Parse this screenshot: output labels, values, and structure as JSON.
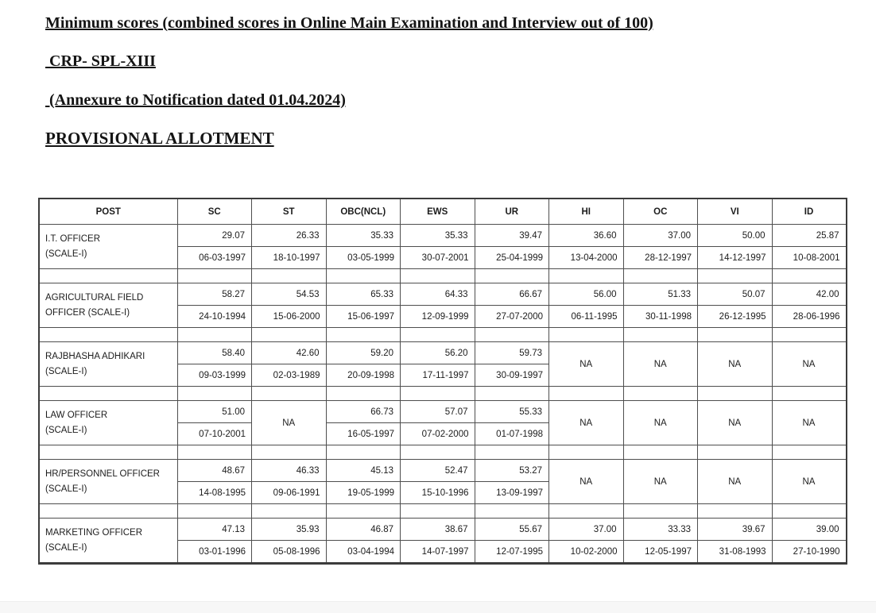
{
  "document": {
    "title": "Minimum scores (combined scores in Online Main Examination and Interview out of 100)",
    "subtitle_crp": " CRP- SPL-XIII",
    "subtitle_annexure": " (Annexure to Notification dated 01.04.2024)",
    "subtitle_provisional": "PROVISIONAL ALLOTMENT"
  },
  "colors": {
    "text": "#1c1c1c",
    "table_border": "#4e4e4e",
    "bottom_bar": "#f7f7f7"
  },
  "table": {
    "columns": [
      "POST",
      "SC",
      "ST",
      "OBC(NCL)",
      "EWS",
      "UR",
      "HI",
      "OC",
      "VI",
      "ID"
    ],
    "na_label": "NA",
    "rows": [
      {
        "post_lines": [
          "I.T. OFFICER",
          "(SCALE-I)"
        ],
        "cells": [
          {
            "score": "29.07",
            "date": "06-03-1997"
          },
          {
            "score": "26.33",
            "date": "18-10-1997"
          },
          {
            "score": "35.33",
            "date": "03-05-1999"
          },
          {
            "score": "35.33",
            "date": "30-07-2001"
          },
          {
            "score": "39.47",
            "date": "25-04-1999"
          },
          {
            "score": "36.60",
            "date": "13-04-2000"
          },
          {
            "score": "37.00",
            "date": "28-12-1997"
          },
          {
            "score": "50.00",
            "date": "14-12-1997"
          },
          {
            "score": "25.87",
            "date": "10-08-2001"
          }
        ]
      },
      {
        "post_lines": [
          "AGRICULTURAL FIELD",
          "OFFICER (SCALE-I)"
        ],
        "cells": [
          {
            "score": "58.27",
            "date": "24-10-1994"
          },
          {
            "score": "54.53",
            "date": "15-06-2000"
          },
          {
            "score": "65.33",
            "date": "15-06-1997"
          },
          {
            "score": "64.33",
            "date": "12-09-1999"
          },
          {
            "score": "66.67",
            "date": "27-07-2000"
          },
          {
            "score": "56.00",
            "date": "06-11-1995"
          },
          {
            "score": "51.33",
            "date": "30-11-1998"
          },
          {
            "score": "50.07",
            "date": "26-12-1995"
          },
          {
            "score": "42.00",
            "date": "28-06-1996"
          }
        ]
      },
      {
        "post_lines": [
          "RAJBHASHA ADHIKARI",
          "(SCALE-I)"
        ],
        "cells": [
          {
            "score": "58.40",
            "date": "09-03-1999"
          },
          {
            "score": "42.60",
            "date": "02-03-1989"
          },
          {
            "score": "59.20",
            "date": "20-09-1998"
          },
          {
            "score": "56.20",
            "date": "17-11-1997"
          },
          {
            "score": "59.73",
            "date": "30-09-1997"
          },
          {
            "na": true
          },
          {
            "na": true
          },
          {
            "na": true
          },
          {
            "na": true
          }
        ]
      },
      {
        "post_lines": [
          "LAW OFFICER",
          "(SCALE-I)"
        ],
        "cells": [
          {
            "score": "51.00",
            "date": "07-10-2001"
          },
          {
            "na": true
          },
          {
            "score": "66.73",
            "date": "16-05-1997"
          },
          {
            "score": "57.07",
            "date": "07-02-2000"
          },
          {
            "score": "55.33",
            "date": "01-07-1998"
          },
          {
            "na": true
          },
          {
            "na": true
          },
          {
            "na": true
          },
          {
            "na": true
          }
        ]
      },
      {
        "post_lines": [
          "HR/PERSONNEL OFFICER",
          "(SCALE-I)"
        ],
        "cells": [
          {
            "score": "48.67",
            "date": "14-08-1995"
          },
          {
            "score": "46.33",
            "date": "09-06-1991"
          },
          {
            "score": "45.13",
            "date": "19-05-1999"
          },
          {
            "score": "52.47",
            "date": "15-10-1996"
          },
          {
            "score": "53.27",
            "date": "13-09-1997"
          },
          {
            "na": true
          },
          {
            "na": true
          },
          {
            "na": true
          },
          {
            "na": true
          }
        ]
      },
      {
        "post_lines": [
          "MARKETING OFFICER",
          "(SCALE-I)"
        ],
        "cells": [
          {
            "score": "47.13",
            "date": "03-01-1996"
          },
          {
            "score": "35.93",
            "date": "05-08-1996"
          },
          {
            "score": "46.87",
            "date": "03-04-1994"
          },
          {
            "score": "38.67",
            "date": "14-07-1997"
          },
          {
            "score": "55.67",
            "date": "12-07-1995"
          },
          {
            "score": "37.00",
            "date": "10-02-2000"
          },
          {
            "score": "33.33",
            "date": "12-05-1997"
          },
          {
            "score": "39.67",
            "date": "31-08-1993"
          },
          {
            "score": "39.00",
            "date": "27-10-1990"
          }
        ]
      }
    ]
  }
}
